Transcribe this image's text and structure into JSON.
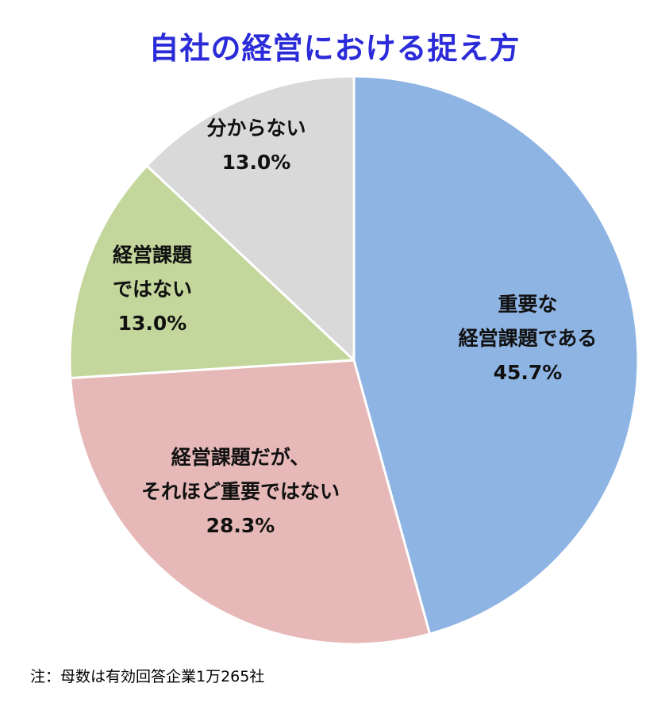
{
  "chart_data": {
    "type": "pie",
    "title": "自社の経営における捉え方",
    "slices": [
      {
        "label_lines": [
          "重要な",
          "経営課題である"
        ],
        "value_text": "45.7%",
        "value": 45.7,
        "color": "#8eb4e3"
      },
      {
        "label_lines": [
          "経営課題だが、",
          "それほど重要ではない"
        ],
        "value_text": "28.3%",
        "value": 28.3,
        "color": "#e6b9b8"
      },
      {
        "label_lines": [
          "経営課題",
          "ではない"
        ],
        "value_text": "13.0%",
        "value": 13.0,
        "color": "#c3d69b"
      },
      {
        "label_lines": [
          "分からない"
        ],
        "value_text": "13.0%",
        "value": 13.0,
        "color": "#d9d9d9"
      }
    ],
    "start_angle": "12 o'clock",
    "direction": "clockwise"
  },
  "footnote": "注：母数は有効回答企業1万265社"
}
